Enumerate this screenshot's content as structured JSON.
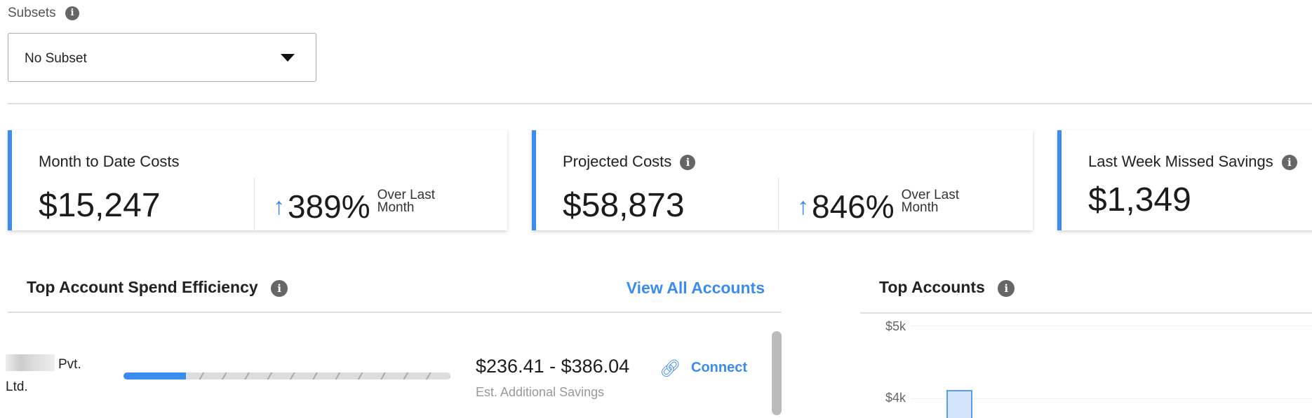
{
  "subsets": {
    "label": "Subsets",
    "selected": "No Subset"
  },
  "cards": [
    {
      "title": "Month to Date Costs",
      "value": "$15,247",
      "change": "389%",
      "change_label_1": "Over Last",
      "change_label_2": "Month",
      "trend": "up"
    },
    {
      "title": "Projected Costs",
      "value": "$58,873",
      "change": "846%",
      "change_label_1": "Over Last",
      "change_label_2": "Month",
      "trend": "up"
    },
    {
      "title": "Last Week Missed Savings",
      "value": "$1,349"
    }
  ],
  "efficiency": {
    "title": "Top Account Spend Efficiency",
    "view_all": "View All Accounts",
    "rows": [
      {
        "name_1": "Pvt.",
        "name_2": "Ltd.",
        "efficiency_fraction": 0.19,
        "savings": "$236.41 - $386.04",
        "savings_label": "Est. Additional Savings",
        "action": "Connect"
      }
    ]
  },
  "top_accounts": {
    "title": "Top Accounts"
  },
  "chart_data": {
    "type": "bar",
    "y_ticks": [
      "$5k",
      "$4k"
    ],
    "grid": true,
    "values_visible": [
      ">4000"
    ]
  },
  "colors": {
    "accent": "#3a8bf2",
    "bar_fill": "#d4e4fb"
  }
}
